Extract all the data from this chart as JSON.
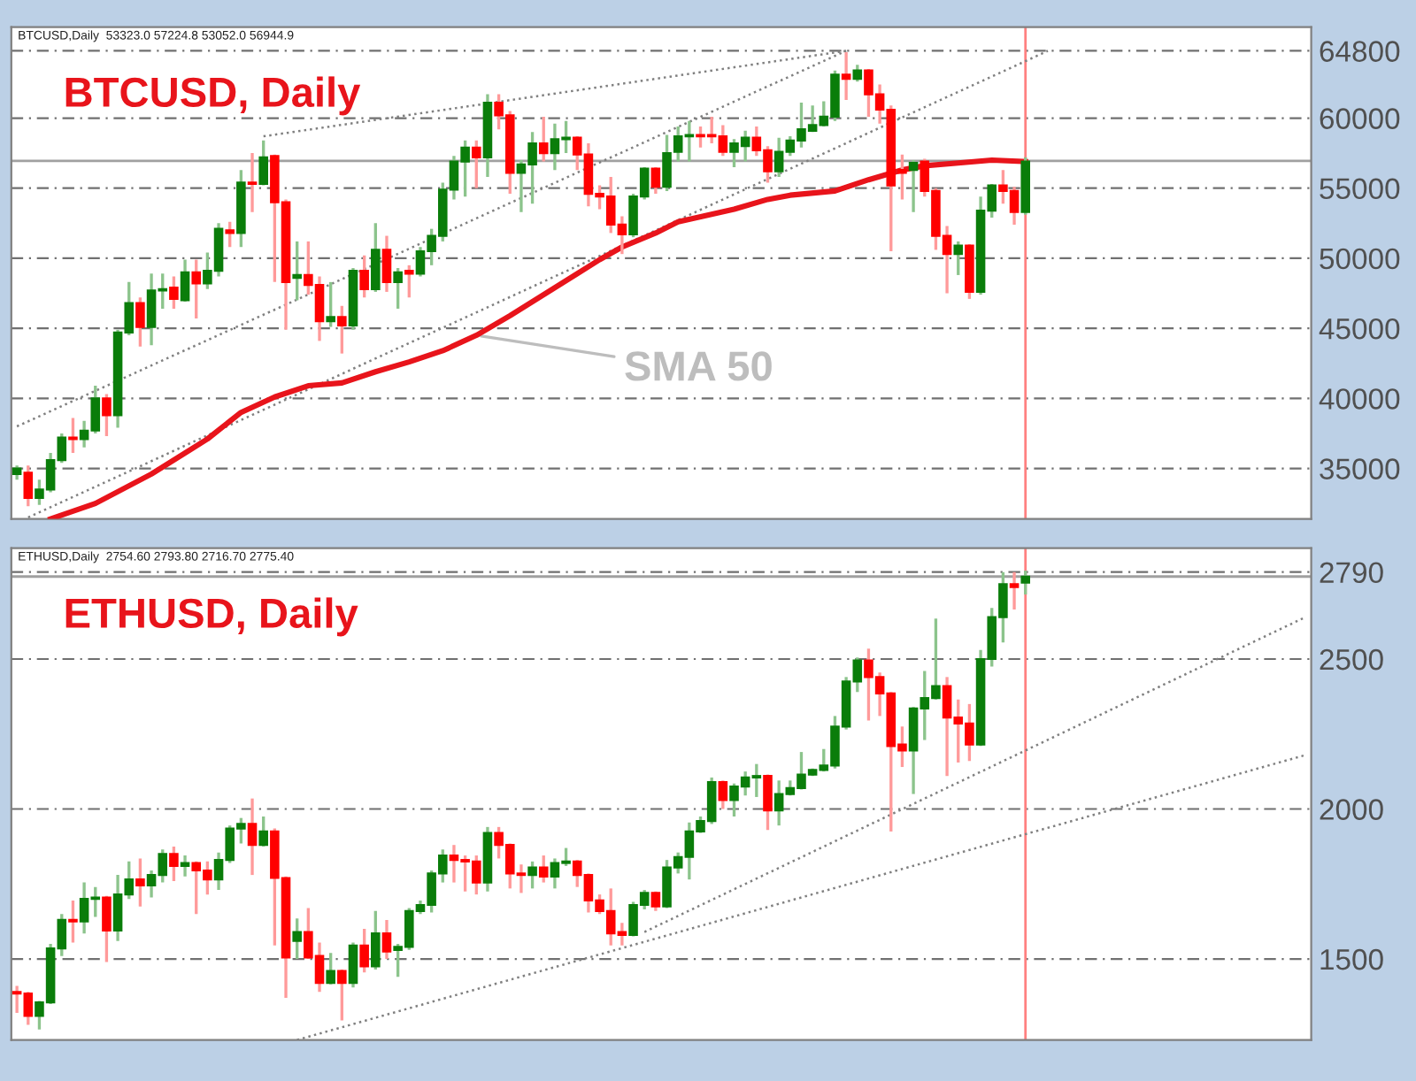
{
  "chart_data": [
    {
      "type": "candlestick",
      "title": "BTCUSD, Daily",
      "annotations": [
        "BTCUSD,Daily  53323.0 57224.8 53052.0 56944.9"
      ],
      "categories": [
        null,
        null,
        null,
        null,
        null,
        null,
        null,
        null,
        null,
        null,
        null,
        null,
        null,
        null,
        null,
        null,
        null,
        null,
        null,
        null,
        null,
        null,
        null,
        null,
        null,
        null,
        null,
        null,
        null,
        null,
        null,
        null,
        null,
        null,
        null,
        null,
        null,
        null,
        null,
        null,
        null,
        null,
        null,
        null,
        null,
        null,
        null,
        null,
        null,
        null,
        null,
        null,
        null,
        null,
        null,
        null,
        null,
        null,
        null,
        null,
        null,
        null,
        null,
        null,
        null,
        null,
        null,
        null,
        null,
        null,
        null,
        null,
        null,
        null,
        null,
        null,
        null,
        null,
        null,
        null,
        null,
        null,
        null,
        null,
        null,
        null,
        null,
        null,
        null,
        null,
        null,
        null,
        null,
        null,
        null,
        null,
        null,
        null,
        null,
        null,
        null,
        null,
        null,
        null,
        null,
        null,
        null,
        null,
        null,
        null,
        null,
        null,
        null,
        null,
        null,
        null
      ],
      "ohlc": [
        [
          34600,
          35200,
          34200,
          35000
        ],
        [
          34700,
          35200,
          32300,
          32900
        ],
        [
          32900,
          34200,
          32400,
          33500
        ],
        [
          33500,
          36100,
          33300,
          35600
        ],
        [
          35600,
          37500,
          35400,
          37200
        ],
        [
          37200,
          38600,
          36100,
          37100
        ],
        [
          37100,
          38400,
          36500,
          37700
        ],
        [
          37700,
          40900,
          37500,
          40000
        ],
        [
          40000,
          40300,
          37300,
          38800
        ],
        [
          38800,
          44900,
          37900,
          44700
        ],
        [
          44700,
          48300,
          44500,
          46800
        ],
        [
          46800,
          47200,
          43700,
          45100
        ],
        [
          45100,
          48900,
          43800,
          47700
        ],
        [
          47700,
          48900,
          46400,
          47800
        ],
        [
          47900,
          48700,
          46400,
          47100
        ],
        [
          47000,
          49900,
          46900,
          49000
        ],
        [
          49000,
          49900,
          45700,
          48200
        ],
        [
          48200,
          50400,
          47800,
          49100
        ],
        [
          49100,
          52500,
          48700,
          52100
        ],
        [
          52000,
          52600,
          50800,
          51800
        ],
        [
          51800,
          56300,
          50800,
          55400
        ],
        [
          55400,
          57500,
          53300,
          55300
        ],
        [
          55300,
          58400,
          55200,
          57200
        ],
        [
          57300,
          57400,
          48300,
          54000
        ],
        [
          54000,
          54200,
          44900,
          48300
        ],
        [
          48600,
          51200,
          47000,
          48800
        ],
        [
          48800,
          51200,
          47400,
          48100
        ],
        [
          48100,
          48700,
          44100,
          45500
        ],
        [
          45500,
          48300,
          45100,
          45800
        ],
        [
          45800,
          46600,
          43200,
          45200
        ],
        [
          45200,
          49300,
          44900,
          49100
        ],
        [
          49100,
          50200,
          47200,
          47800
        ],
        [
          47800,
          52500,
          47600,
          50600
        ],
        [
          50600,
          51600,
          47600,
          48300
        ],
        [
          48300,
          49300,
          46400,
          49000
        ],
        [
          49100,
          49500,
          47200,
          48900
        ],
        [
          48900,
          50800,
          48700,
          50500
        ],
        [
          50500,
          52100,
          49500,
          51600
        ],
        [
          51600,
          55400,
          51200,
          54900
        ],
        [
          54900,
          57300,
          54200,
          56900
        ],
        [
          56900,
          58400,
          54400,
          57900
        ],
        [
          57900,
          58400,
          55000,
          57200
        ],
        [
          57200,
          61700,
          55800,
          61100
        ],
        [
          61100,
          61700,
          59200,
          60200
        ],
        [
          60200,
          60500,
          54600,
          56100
        ],
        [
          56100,
          57000,
          53300,
          56700
        ],
        [
          56700,
          59000,
          53900,
          58200
        ],
        [
          58200,
          60100,
          56900,
          57500
        ],
        [
          57500,
          59600,
          56300,
          58500
        ],
        [
          58500,
          59800,
          57500,
          58600
        ],
        [
          58600,
          58700,
          56300,
          57400
        ],
        [
          57400,
          58200,
          53700,
          54600
        ],
        [
          54600,
          55200,
          53500,
          54400
        ],
        [
          54400,
          55800,
          51800,
          52400
        ],
        [
          52400,
          53000,
          50300,
          51700
        ],
        [
          51700,
          54600,
          51500,
          54400
        ],
        [
          54400,
          56500,
          54200,
          56400
        ],
        [
          56400,
          56500,
          54600,
          55100
        ],
        [
          55100,
          58800,
          54800,
          57500
        ],
        [
          57600,
          59400,
          56900,
          58700
        ],
        [
          58700,
          59800,
          56900,
          58800
        ],
        [
          58800,
          59400,
          57900,
          58700
        ],
        [
          58800,
          60100,
          58200,
          58700
        ],
        [
          58700,
          59500,
          57300,
          57600
        ],
        [
          57600,
          58500,
          56500,
          58200
        ],
        [
          58000,
          59100,
          56900,
          58600
        ],
        [
          58600,
          59400,
          57300,
          57700
        ],
        [
          57700,
          58000,
          55400,
          56200
        ],
        [
          56200,
          58600,
          55800,
          57600
        ],
        [
          57600,
          58700,
          57300,
          58400
        ],
        [
          58400,
          61100,
          57900,
          59200
        ],
        [
          59100,
          60900,
          59000,
          59500
        ],
        [
          59500,
          61200,
          59400,
          60100
        ],
        [
          60100,
          63400,
          59800,
          63100
        ],
        [
          63100,
          64700,
          61300,
          62800
        ],
        [
          62800,
          63800,
          62600,
          63400
        ],
        [
          63400,
          63500,
          60100,
          61700
        ],
        [
          61700,
          62400,
          59600,
          60600
        ],
        [
          60600,
          60900,
          50500,
          55200
        ],
        [
          56300,
          57400,
          54200,
          56100
        ],
        [
          56300,
          57000,
          53300,
          56800
        ],
        [
          56900,
          57100,
          54400,
          54800
        ],
        [
          54800,
          55000,
          50600,
          51600
        ],
        [
          51600,
          52300,
          47500,
          50300
        ],
        [
          50300,
          51200,
          48800,
          50900
        ],
        [
          50900,
          51000,
          47100,
          47600
        ],
        [
          47600,
          54400,
          47400,
          53400
        ],
        [
          53400,
          55300,
          52900,
          55200
        ],
        [
          55200,
          56300,
          53900,
          54800
        ],
        [
          54800,
          55100,
          52400,
          53300
        ],
        [
          53300,
          57200,
          53100,
          56900
        ],
        null,
        null,
        null,
        null,
        null,
        null,
        null,
        null,
        null,
        null,
        null,
        null,
        null,
        null,
        null,
        null,
        null,
        null,
        null,
        null,
        null,
        null,
        null,
        null,
        null
      ],
      "series": [
        {
          "type": "line",
          "name": "SMA 50",
          "color": "#e8141b",
          "line_style": "solid",
          "values": [
            null,
            null,
            null,
            31400,
            null,
            null,
            null,
            32500,
            null,
            null,
            null,
            null,
            34600,
            null,
            null,
            null,
            null,
            37100,
            null,
            null,
            39000,
            null,
            null,
            40100,
            null,
            null,
            40900,
            null,
            null,
            41100,
            null,
            null,
            41900,
            null,
            null,
            42600,
            null,
            null,
            43400,
            null,
            null,
            44500,
            null,
            null,
            45900,
            null,
            null,
            47400,
            null,
            null,
            48900,
            null,
            49900,
            null,
            50800,
            null,
            null,
            51800,
            null,
            52600,
            null,
            null,
            null,
            null,
            53500,
            null,
            null,
            54200,
            null,
            54500,
            null,
            null,
            null,
            54800,
            null,
            null,
            55600,
            null,
            null,
            56300,
            null,
            56600,
            null,
            null,
            56800,
            null,
            null,
            57000,
            null,
            null,
            56900,
            null,
            null,
            null,
            null,
            null,
            null,
            null,
            null,
            null,
            null,
            null,
            null,
            null,
            null,
            null,
            null,
            null,
            null,
            null,
            null,
            null,
            null,
            null,
            null,
            null
          ]
        },
        {
          "type": "line",
          "color": "#808080",
          "line_style": "dotted",
          "values": [
            null,
            null,
            null,
            null,
            null,
            null,
            null,
            null,
            null,
            null,
            null,
            null,
            null,
            null,
            null,
            null,
            null,
            null,
            null,
            null,
            null,
            null,
            58700,
            null,
            null,
            null,
            null,
            null,
            null,
            null,
            null,
            null,
            null,
            null,
            null,
            null,
            null,
            null,
            null,
            null,
            null,
            null,
            null,
            null,
            null,
            null,
            null,
            null,
            null,
            null,
            null,
            null,
            null,
            null,
            null,
            null,
            null,
            null,
            null,
            null,
            null,
            null,
            null,
            null,
            null,
            null,
            null,
            null,
            null,
            null,
            null,
            null,
            null,
            null,
            64800,
            null,
            null,
            null,
            null,
            null,
            null,
            null,
            null,
            null,
            null,
            null,
            null,
            null,
            null,
            null,
            null,
            null,
            null,
            null,
            null,
            null,
            null,
            null,
            null,
            null,
            null,
            null,
            null,
            null,
            null,
            null,
            null,
            null,
            null,
            null,
            null,
            null,
            null,
            null,
            null,
            null
          ]
        },
        {
          "type": "line",
          "color": "#808080",
          "line_style": "dotted",
          "values": [
            38000,
            null,
            null,
            null,
            null,
            null,
            null,
            null,
            null,
            null,
            null,
            null,
            null,
            null,
            null,
            null,
            null,
            null,
            null,
            null,
            null,
            null,
            null,
            null,
            null,
            null,
            null,
            null,
            null,
            null,
            null,
            null,
            null,
            null,
            null,
            null,
            null,
            null,
            null,
            null,
            null,
            null,
            null,
            null,
            null,
            null,
            null,
            null,
            null,
            null,
            null,
            null,
            null,
            null,
            null,
            null,
            null,
            null,
            null,
            null,
            null,
            null,
            null,
            null,
            null,
            null,
            null,
            null,
            null,
            null,
            null,
            null,
            null,
            null,
            64800,
            null,
            null,
            null,
            null,
            null,
            null,
            null,
            null,
            null,
            null,
            null,
            null,
            null,
            null,
            null,
            null,
            null,
            null,
            null,
            null,
            null,
            null,
            null,
            null,
            null,
            null,
            null,
            null,
            null,
            null,
            null,
            null,
            null,
            null,
            null,
            null,
            null,
            null,
            null,
            null,
            null
          ]
        },
        {
          "type": "line",
          "color": "#808080",
          "line_style": "dotted",
          "values": [
            null,
            31500,
            null,
            null,
            null,
            null,
            null,
            null,
            null,
            null,
            null,
            null,
            null,
            null,
            null,
            null,
            null,
            null,
            null,
            null,
            null,
            null,
            null,
            null,
            null,
            null,
            null,
            null,
            null,
            null,
            null,
            null,
            null,
            null,
            null,
            null,
            null,
            null,
            null,
            null,
            null,
            null,
            null,
            null,
            null,
            null,
            null,
            null,
            null,
            null,
            null,
            null,
            null,
            null,
            null,
            null,
            null,
            null,
            null,
            null,
            null,
            null,
            null,
            null,
            null,
            null,
            null,
            null,
            null,
            null,
            null,
            null,
            null,
            null,
            null,
            null,
            null,
            null,
            null,
            null,
            null,
            null,
            null,
            null,
            null,
            null,
            null,
            null,
            null,
            null,
            null,
            null,
            64800,
            null,
            null,
            null,
            null,
            null,
            null,
            null,
            null,
            null,
            null,
            null,
            null,
            null,
            null,
            null,
            null,
            null,
            null,
            null,
            null,
            null,
            null,
            null
          ]
        }
      ],
      "ylim": [
        31400,
        66500
      ],
      "yticks": [
        35000,
        40000,
        45000,
        50000,
        55000,
        60000,
        64800
      ],
      "grid": "y",
      "tick_labels": "y",
      "ref_lines": [
        {
          "axis": "y",
          "value": 56945,
          "color": "#a0a0a0",
          "line_style": "solid"
        }
      ]
    },
    {
      "type": "candlestick",
      "title": "ETHUSD, Daily",
      "annotations": [
        "ETHUSD,Daily  2754.60 2793.80 2716.70 2775.40"
      ],
      "categories": [
        null,
        null,
        null,
        null,
        null,
        null,
        null,
        null,
        null,
        null,
        null,
        null,
        null,
        null,
        null,
        null,
        null,
        null,
        null,
        null,
        null,
        null,
        null,
        null,
        null,
        null,
        null,
        null,
        null,
        null,
        null,
        null,
        null,
        null,
        null,
        null,
        null,
        null,
        null,
        null,
        null,
        null,
        null,
        null,
        null,
        null,
        null,
        null,
        null,
        null,
        null,
        null,
        null,
        null,
        null,
        null,
        null,
        null,
        null,
        null,
        null,
        null,
        null,
        null,
        null,
        null,
        null,
        null,
        null,
        null,
        null,
        null,
        null,
        null,
        null,
        null,
        null,
        null,
        null,
        null,
        null,
        null,
        null,
        null,
        null,
        null,
        null,
        null,
        null,
        null,
        null,
        null,
        null,
        null,
        null,
        null,
        null,
        null,
        null,
        null,
        null,
        null,
        null,
        null,
        null,
        null,
        null,
        null,
        null,
        null,
        null,
        null,
        null,
        null,
        null,
        null
      ],
      "ohlc": [
        [
          1390,
          1410,
          1320,
          1385
        ],
        [
          1385,
          1390,
          1280,
          1310
        ],
        [
          1310,
          1360,
          1265,
          1355
        ],
        [
          1355,
          1550,
          1350,
          1535
        ],
        [
          1535,
          1650,
          1510,
          1630
        ],
        [
          1630,
          1695,
          1555,
          1625
        ],
        [
          1625,
          1755,
          1585,
          1700
        ],
        [
          1700,
          1740,
          1640,
          1705
        ],
        [
          1705,
          1710,
          1490,
          1595
        ],
        [
          1595,
          1780,
          1560,
          1715
        ],
        [
          1715,
          1825,
          1700,
          1765
        ],
        [
          1765,
          1835,
          1675,
          1745
        ],
        [
          1745,
          1795,
          1705,
          1780
        ],
        [
          1780,
          1865,
          1755,
          1850
        ],
        [
          1850,
          1875,
          1760,
          1810
        ],
        [
          1810,
          1845,
          1775,
          1820
        ],
        [
          1820,
          1825,
          1650,
          1795
        ],
        [
          1795,
          1825,
          1715,
          1765
        ],
        [
          1765,
          1855,
          1730,
          1830
        ],
        [
          1830,
          1945,
          1820,
          1935
        ],
        [
          1935,
          1970,
          1885,
          1950
        ],
        [
          1950,
          2035,
          1780,
          1880
        ],
        [
          1880,
          1975,
          1875,
          1925
        ],
        [
          1925,
          1935,
          1545,
          1770
        ],
        [
          1770,
          1775,
          1370,
          1505
        ],
        [
          1560,
          1635,
          1500,
          1590
        ],
        [
          1590,
          1670,
          1500,
          1505
        ],
        [
          1510,
          1555,
          1390,
          1420
        ],
        [
          1420,
          1520,
          1415,
          1460
        ],
        [
          1460,
          1465,
          1295,
          1420
        ],
        [
          1420,
          1555,
          1405,
          1545
        ],
        [
          1545,
          1600,
          1455,
          1475
        ],
        [
          1475,
          1660,
          1465,
          1585
        ],
        [
          1585,
          1630,
          1500,
          1525
        ],
        [
          1530,
          1550,
          1440,
          1540
        ],
        [
          1540,
          1670,
          1530,
          1660
        ],
        [
          1660,
          1695,
          1650,
          1680
        ],
        [
          1680,
          1795,
          1655,
          1785
        ],
        [
          1785,
          1865,
          1755,
          1845
        ],
        [
          1845,
          1880,
          1755,
          1830
        ],
        [
          1830,
          1845,
          1725,
          1825
        ],
        [
          1825,
          1845,
          1715,
          1755
        ],
        [
          1755,
          1940,
          1725,
          1920
        ],
        [
          1920,
          1940,
          1835,
          1880
        ],
        [
          1880,
          1885,
          1735,
          1785
        ],
        [
          1785,
          1815,
          1720,
          1780
        ],
        [
          1780,
          1825,
          1735,
          1805
        ],
        [
          1805,
          1845,
          1755,
          1775
        ],
        [
          1775,
          1835,
          1735,
          1820
        ],
        [
          1820,
          1870,
          1810,
          1825
        ],
        [
          1825,
          1830,
          1740,
          1780
        ],
        [
          1780,
          1785,
          1655,
          1695
        ],
        [
          1695,
          1715,
          1650,
          1660
        ],
        [
          1660,
          1735,
          1545,
          1585
        ],
        [
          1590,
          1620,
          1545,
          1580
        ],
        [
          1580,
          1690,
          1575,
          1680
        ],
        [
          1680,
          1730,
          1665,
          1720
        ],
        [
          1720,
          1725,
          1660,
          1675
        ],
        [
          1675,
          1830,
          1670,
          1805
        ],
        [
          1805,
          1855,
          1785,
          1840
        ],
        [
          1840,
          1955,
          1765,
          1925
        ],
        [
          1925,
          1975,
          1920,
          1960
        ],
        [
          1960,
          2105,
          1950,
          2090
        ],
        [
          2090,
          2095,
          2000,
          2030
        ],
        [
          2030,
          2085,
          1975,
          2075
        ],
        [
          2075,
          2125,
          2045,
          2105
        ],
        [
          2105,
          2150,
          2040,
          2110
        ],
        [
          2110,
          2115,
          1930,
          1995
        ],
        [
          1995,
          2095,
          1945,
          2050
        ],
        [
          2050,
          2095,
          2045,
          2070
        ],
        [
          2070,
          2190,
          2065,
          2115
        ],
        [
          2115,
          2135,
          2110,
          2130
        ],
        [
          2130,
          2200,
          2125,
          2145
        ],
        [
          2145,
          2310,
          2135,
          2275
        ],
        [
          2275,
          2440,
          2265,
          2425
        ],
        [
          2425,
          2505,
          2390,
          2495
        ],
        [
          2495,
          2535,
          2295,
          2440
        ],
        [
          2440,
          2455,
          2310,
          2385
        ],
        [
          2385,
          2390,
          1925,
          2210
        ],
        [
          2215,
          2275,
          2140,
          2195
        ],
        [
          2195,
          2340,
          2050,
          2335
        ],
        [
          2335,
          2460,
          2230,
          2370
        ],
        [
          2370,
          2635,
          2365,
          2410
        ],
        [
          2410,
          2440,
          2110,
          2305
        ],
        [
          2305,
          2365,
          2155,
          2285
        ],
        [
          2285,
          2350,
          2160,
          2215
        ],
        [
          2215,
          2530,
          2210,
          2500
        ],
        [
          2500,
          2670,
          2475,
          2640
        ],
        [
          2640,
          2790,
          2555,
          2750
        ],
        [
          2750,
          2790,
          2665,
          2740
        ],
        [
          2755,
          2795,
          2715,
          2775
        ],
        null,
        null,
        null,
        null,
        null,
        null,
        null,
        null,
        null,
        null,
        null,
        null,
        null,
        null,
        null,
        null,
        null,
        null,
        null,
        null,
        null,
        null,
        null,
        null,
        null
      ],
      "series": [
        {
          "type": "line",
          "color": "#808080",
          "line_style": "dotted",
          "values": [
            null,
            null,
            null,
            null,
            null,
            null,
            null,
            null,
            null,
            null,
            null,
            null,
            null,
            null,
            null,
            null,
            null,
            null,
            null,
            null,
            null,
            null,
            null,
            null,
            null,
            null,
            null,
            null,
            null,
            null,
            null,
            null,
            null,
            null,
            null,
            null,
            null,
            null,
            null,
            null,
            null,
            null,
            null,
            null,
            null,
            null,
            null,
            null,
            null,
            null,
            null,
            null,
            null,
            null,
            null,
            null,
            1590,
            null,
            null,
            null,
            null,
            null,
            null,
            null,
            null,
            null,
            null,
            null,
            null,
            null,
            null,
            null,
            null,
            null,
            null,
            null,
            null,
            null,
            null,
            null,
            null,
            null,
            null,
            null,
            null,
            null,
            null,
            null,
            null,
            null,
            null,
            null,
            null,
            null,
            null,
            null,
            null,
            null,
            null,
            null,
            null,
            null,
            null,
            null,
            null,
            null,
            null,
            null,
            null,
            null,
            null,
            null,
            null,
            null,
            null,
            2640
          ]
        },
        {
          "type": "line",
          "color": "#808080",
          "line_style": "dotted",
          "values": [
            null,
            null,
            null,
            null,
            null,
            null,
            null,
            null,
            null,
            null,
            null,
            null,
            null,
            null,
            null,
            null,
            null,
            null,
            null,
            null,
            null,
            null,
            null,
            null,
            null,
            1230,
            null,
            null,
            null,
            null,
            null,
            null,
            null,
            null,
            null,
            null,
            null,
            null,
            null,
            null,
            null,
            null,
            null,
            null,
            null,
            null,
            null,
            null,
            null,
            null,
            null,
            null,
            null,
            null,
            null,
            null,
            null,
            null,
            null,
            null,
            null,
            null,
            null,
            null,
            null,
            null,
            null,
            null,
            null,
            null,
            null,
            null,
            null,
            null,
            null,
            null,
            null,
            null,
            null,
            null,
            null,
            null,
            null,
            null,
            null,
            null,
            null,
            null,
            null,
            null,
            null,
            null,
            null,
            null,
            null,
            null,
            null,
            null,
            null,
            null,
            null,
            null,
            null,
            null,
            null,
            null,
            null,
            null,
            null,
            null,
            null,
            null,
            null,
            null,
            null,
            2180
          ]
        }
      ],
      "ylim": [
        1230,
        2870
      ],
      "yticks": [
        1500,
        2000,
        2500,
        2790
      ],
      "grid": "y",
      "tick_labels": "y",
      "ref_lines": [
        {
          "axis": "y",
          "value": 2775,
          "color": "#a0a0a0",
          "line_style": "solid"
        }
      ]
    }
  ]
}
